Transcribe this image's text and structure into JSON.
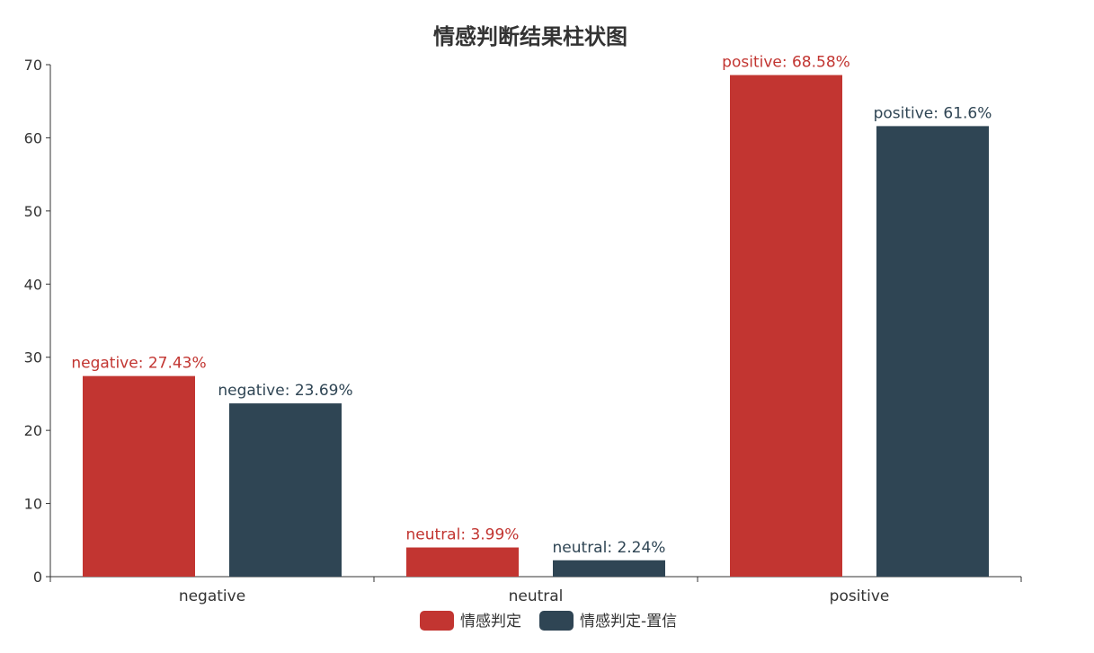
{
  "chart_data": {
    "type": "bar",
    "title": "情感判断结果柱状图",
    "categories": [
      "negative",
      "neutral",
      "positive"
    ],
    "ylim": [
      0,
      70
    ],
    "yticks": [
      0,
      10,
      20,
      30,
      40,
      50,
      60,
      70
    ],
    "grid": false,
    "legend_position": "bottom",
    "series": [
      {
        "name": "情感判定",
        "color": "#c23531",
        "values": [
          27.43,
          3.99,
          68.58
        ],
        "labels": [
          "negative: 27.43%",
          "neutral: 3.99%",
          "positive: 68.58%"
        ]
      },
      {
        "name": "情感判定-置信",
        "color": "#2f4554",
        "values": [
          23.69,
          2.24,
          61.6
        ],
        "labels": [
          "negative: 23.69%",
          "neutral: 2.24%",
          "positive: 61.6%"
        ]
      }
    ]
  }
}
